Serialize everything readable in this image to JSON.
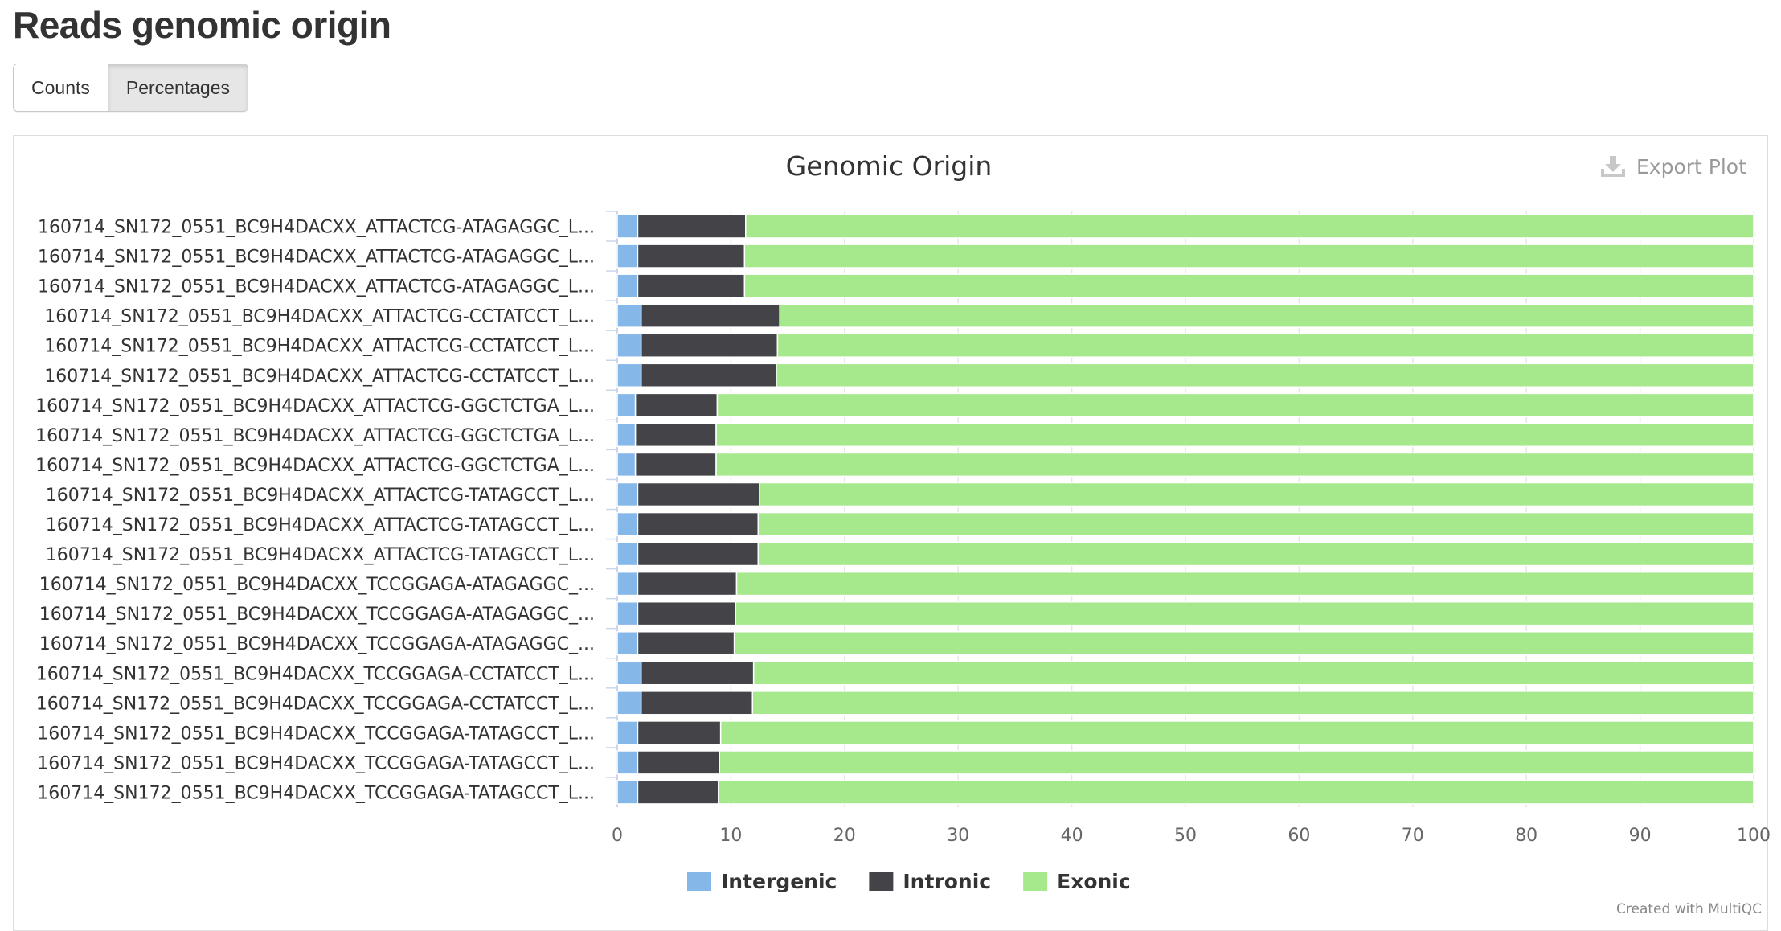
{
  "page": {
    "title": "Reads genomic origin"
  },
  "toggle": {
    "counts_label": "Counts",
    "percentages_label": "Percentages",
    "active": "Percentages"
  },
  "export": {
    "label": "Export Plot",
    "icon": "download-icon"
  },
  "footer": {
    "credit": "Created with MultiQC"
  },
  "colors": {
    "Intergenic": "#85b7e8",
    "Intronic": "#434348",
    "Exonic": "#a6e98c",
    "grid": "#e6e6e6",
    "axis": "#ccd6eb",
    "text": "#333333"
  },
  "chart_data": {
    "type": "bar",
    "orientation": "horizontal",
    "stacked": true,
    "title": "Genomic Origin",
    "xlabel": "",
    "ylabel": "",
    "xlim": [
      0,
      100
    ],
    "xticks": [
      "0",
      "10",
      "20",
      "30",
      "40",
      "50",
      "60",
      "70",
      "80",
      "90",
      "100"
    ],
    "legend_position": "bottom-center",
    "grid": true,
    "categories": [
      "160714_SN172_0551_BC9H4DACXX_ATTACTCG-ATAGAGGC_L...",
      "160714_SN172_0551_BC9H4DACXX_ATTACTCG-ATAGAGGC_L...",
      "160714_SN172_0551_BC9H4DACXX_ATTACTCG-ATAGAGGC_L...",
      "160714_SN172_0551_BC9H4DACXX_ATTACTCG-CCTATCCT_L...",
      "160714_SN172_0551_BC9H4DACXX_ATTACTCG-CCTATCCT_L...",
      "160714_SN172_0551_BC9H4DACXX_ATTACTCG-CCTATCCT_L...",
      "160714_SN172_0551_BC9H4DACXX_ATTACTCG-GGCTCTGA_L...",
      "160714_SN172_0551_BC9H4DACXX_ATTACTCG-GGCTCTGA_L...",
      "160714_SN172_0551_BC9H4DACXX_ATTACTCG-GGCTCTGA_L...",
      "160714_SN172_0551_BC9H4DACXX_ATTACTCG-TATAGCCT_L...",
      "160714_SN172_0551_BC9H4DACXX_ATTACTCG-TATAGCCT_L...",
      "160714_SN172_0551_BC9H4DACXX_ATTACTCG-TATAGCCT_L...",
      "160714_SN172_0551_BC9H4DACXX_TCCGGAGA-ATAGAGGC_...",
      "160714_SN172_0551_BC9H4DACXX_TCCGGAGA-ATAGAGGC_...",
      "160714_SN172_0551_BC9H4DACXX_TCCGGAGA-ATAGAGGC_...",
      "160714_SN172_0551_BC9H4DACXX_TCCGGAGA-CCTATCCT_L...",
      "160714_SN172_0551_BC9H4DACXX_TCCGGAGA-CCTATCCT_L...",
      "160714_SN172_0551_BC9H4DACXX_TCCGGAGA-TATAGCCT_L...",
      "160714_SN172_0551_BC9H4DACXX_TCCGGAGA-TATAGCCT_L...",
      "160714_SN172_0551_BC9H4DACXX_TCCGGAGA-TATAGCCT_L..."
    ],
    "series": [
      {
        "name": "Intergenic",
        "values": [
          1.8,
          1.8,
          1.8,
          2.1,
          2.1,
          2.1,
          1.6,
          1.6,
          1.6,
          1.8,
          1.8,
          1.8,
          1.8,
          1.8,
          1.8,
          2.1,
          2.1,
          1.8,
          1.8,
          1.8
        ]
      },
      {
        "name": "Intronic",
        "values": [
          9.5,
          9.4,
          9.4,
          12.2,
          12.0,
          11.9,
          7.2,
          7.1,
          7.1,
          10.7,
          10.6,
          10.6,
          8.7,
          8.6,
          8.5,
          9.9,
          9.8,
          7.3,
          7.2,
          7.1
        ]
      },
      {
        "name": "Exonic",
        "values": [
          88.7,
          88.8,
          88.8,
          85.7,
          85.9,
          86.0,
          91.2,
          91.3,
          91.3,
          87.5,
          87.6,
          87.6,
          89.5,
          89.6,
          89.7,
          88.0,
          88.1,
          90.9,
          91.0,
          91.1
        ]
      }
    ]
  }
}
